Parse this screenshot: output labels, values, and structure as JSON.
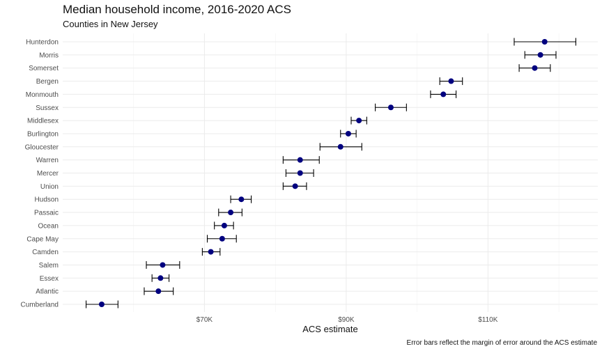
{
  "header": {
    "title": "Median household income, 2016-2020 ACS",
    "subtitle": "Counties in New Jersey"
  },
  "chart_data": {
    "type": "scatter",
    "title": "Median household income, 2016-2020 ACS",
    "subtitle": "Counties in New Jersey",
    "xlabel": "ACS estimate",
    "ylabel": "",
    "caption": "Error bars reflect the margin of error around the ACS estimate",
    "xlim": [
      50000,
      125500
    ],
    "x_ticks": [
      {
        "value": 70000,
        "label": "$70K"
      },
      {
        "value": 90000,
        "label": "$90K"
      },
      {
        "value": 110000,
        "label": "$110K"
      }
    ],
    "x_minor_ticks": [
      60000,
      80000,
      100000,
      120000
    ],
    "grid": true,
    "colors": {
      "point": "#00007f",
      "errorbar": "#000000",
      "grid": "#ebebeb"
    },
    "points": [
      {
        "county": "Hunterdon",
        "estimate": 118000,
        "low": 113700,
        "high": 122400
      },
      {
        "county": "Morris",
        "estimate": 117400,
        "low": 115200,
        "high": 119600
      },
      {
        "county": "Somerset",
        "estimate": 116600,
        "low": 114400,
        "high": 118800
      },
      {
        "county": "Bergen",
        "estimate": 104800,
        "low": 103200,
        "high": 106400
      },
      {
        "county": "Monmouth",
        "estimate": 103700,
        "low": 101900,
        "high": 105500
      },
      {
        "county": "Sussex",
        "estimate": 96300,
        "low": 94100,
        "high": 98500
      },
      {
        "county": "Middlesex",
        "estimate": 91800,
        "low": 90700,
        "high": 92900
      },
      {
        "county": "Burlington",
        "estimate": 90300,
        "low": 89200,
        "high": 91400
      },
      {
        "county": "Gloucester",
        "estimate": 89200,
        "low": 86300,
        "high": 92200
      },
      {
        "county": "Warren",
        "estimate": 83500,
        "low": 81100,
        "high": 86200
      },
      {
        "county": "Mercer",
        "estimate": 83500,
        "low": 81500,
        "high": 85400
      },
      {
        "county": "Union",
        "estimate": 82800,
        "low": 81100,
        "high": 84400
      },
      {
        "county": "Hudson",
        "estimate": 75200,
        "low": 73700,
        "high": 76600
      },
      {
        "county": "Passaic",
        "estimate": 73700,
        "low": 72000,
        "high": 75300
      },
      {
        "county": "Ocean",
        "estimate": 72800,
        "low": 71400,
        "high": 74100
      },
      {
        "county": "Cape May",
        "estimate": 72500,
        "low": 70400,
        "high": 74500
      },
      {
        "county": "Camden",
        "estimate": 70900,
        "low": 69700,
        "high": 72200
      },
      {
        "county": "Salem",
        "estimate": 64100,
        "low": 61800,
        "high": 66500
      },
      {
        "county": "Essex",
        "estimate": 63800,
        "low": 62600,
        "high": 65000
      },
      {
        "county": "Atlantic",
        "estimate": 63500,
        "low": 61500,
        "high": 65600
      },
      {
        "county": "Cumberland",
        "estimate": 55500,
        "low": 53300,
        "high": 57800
      }
    ]
  }
}
